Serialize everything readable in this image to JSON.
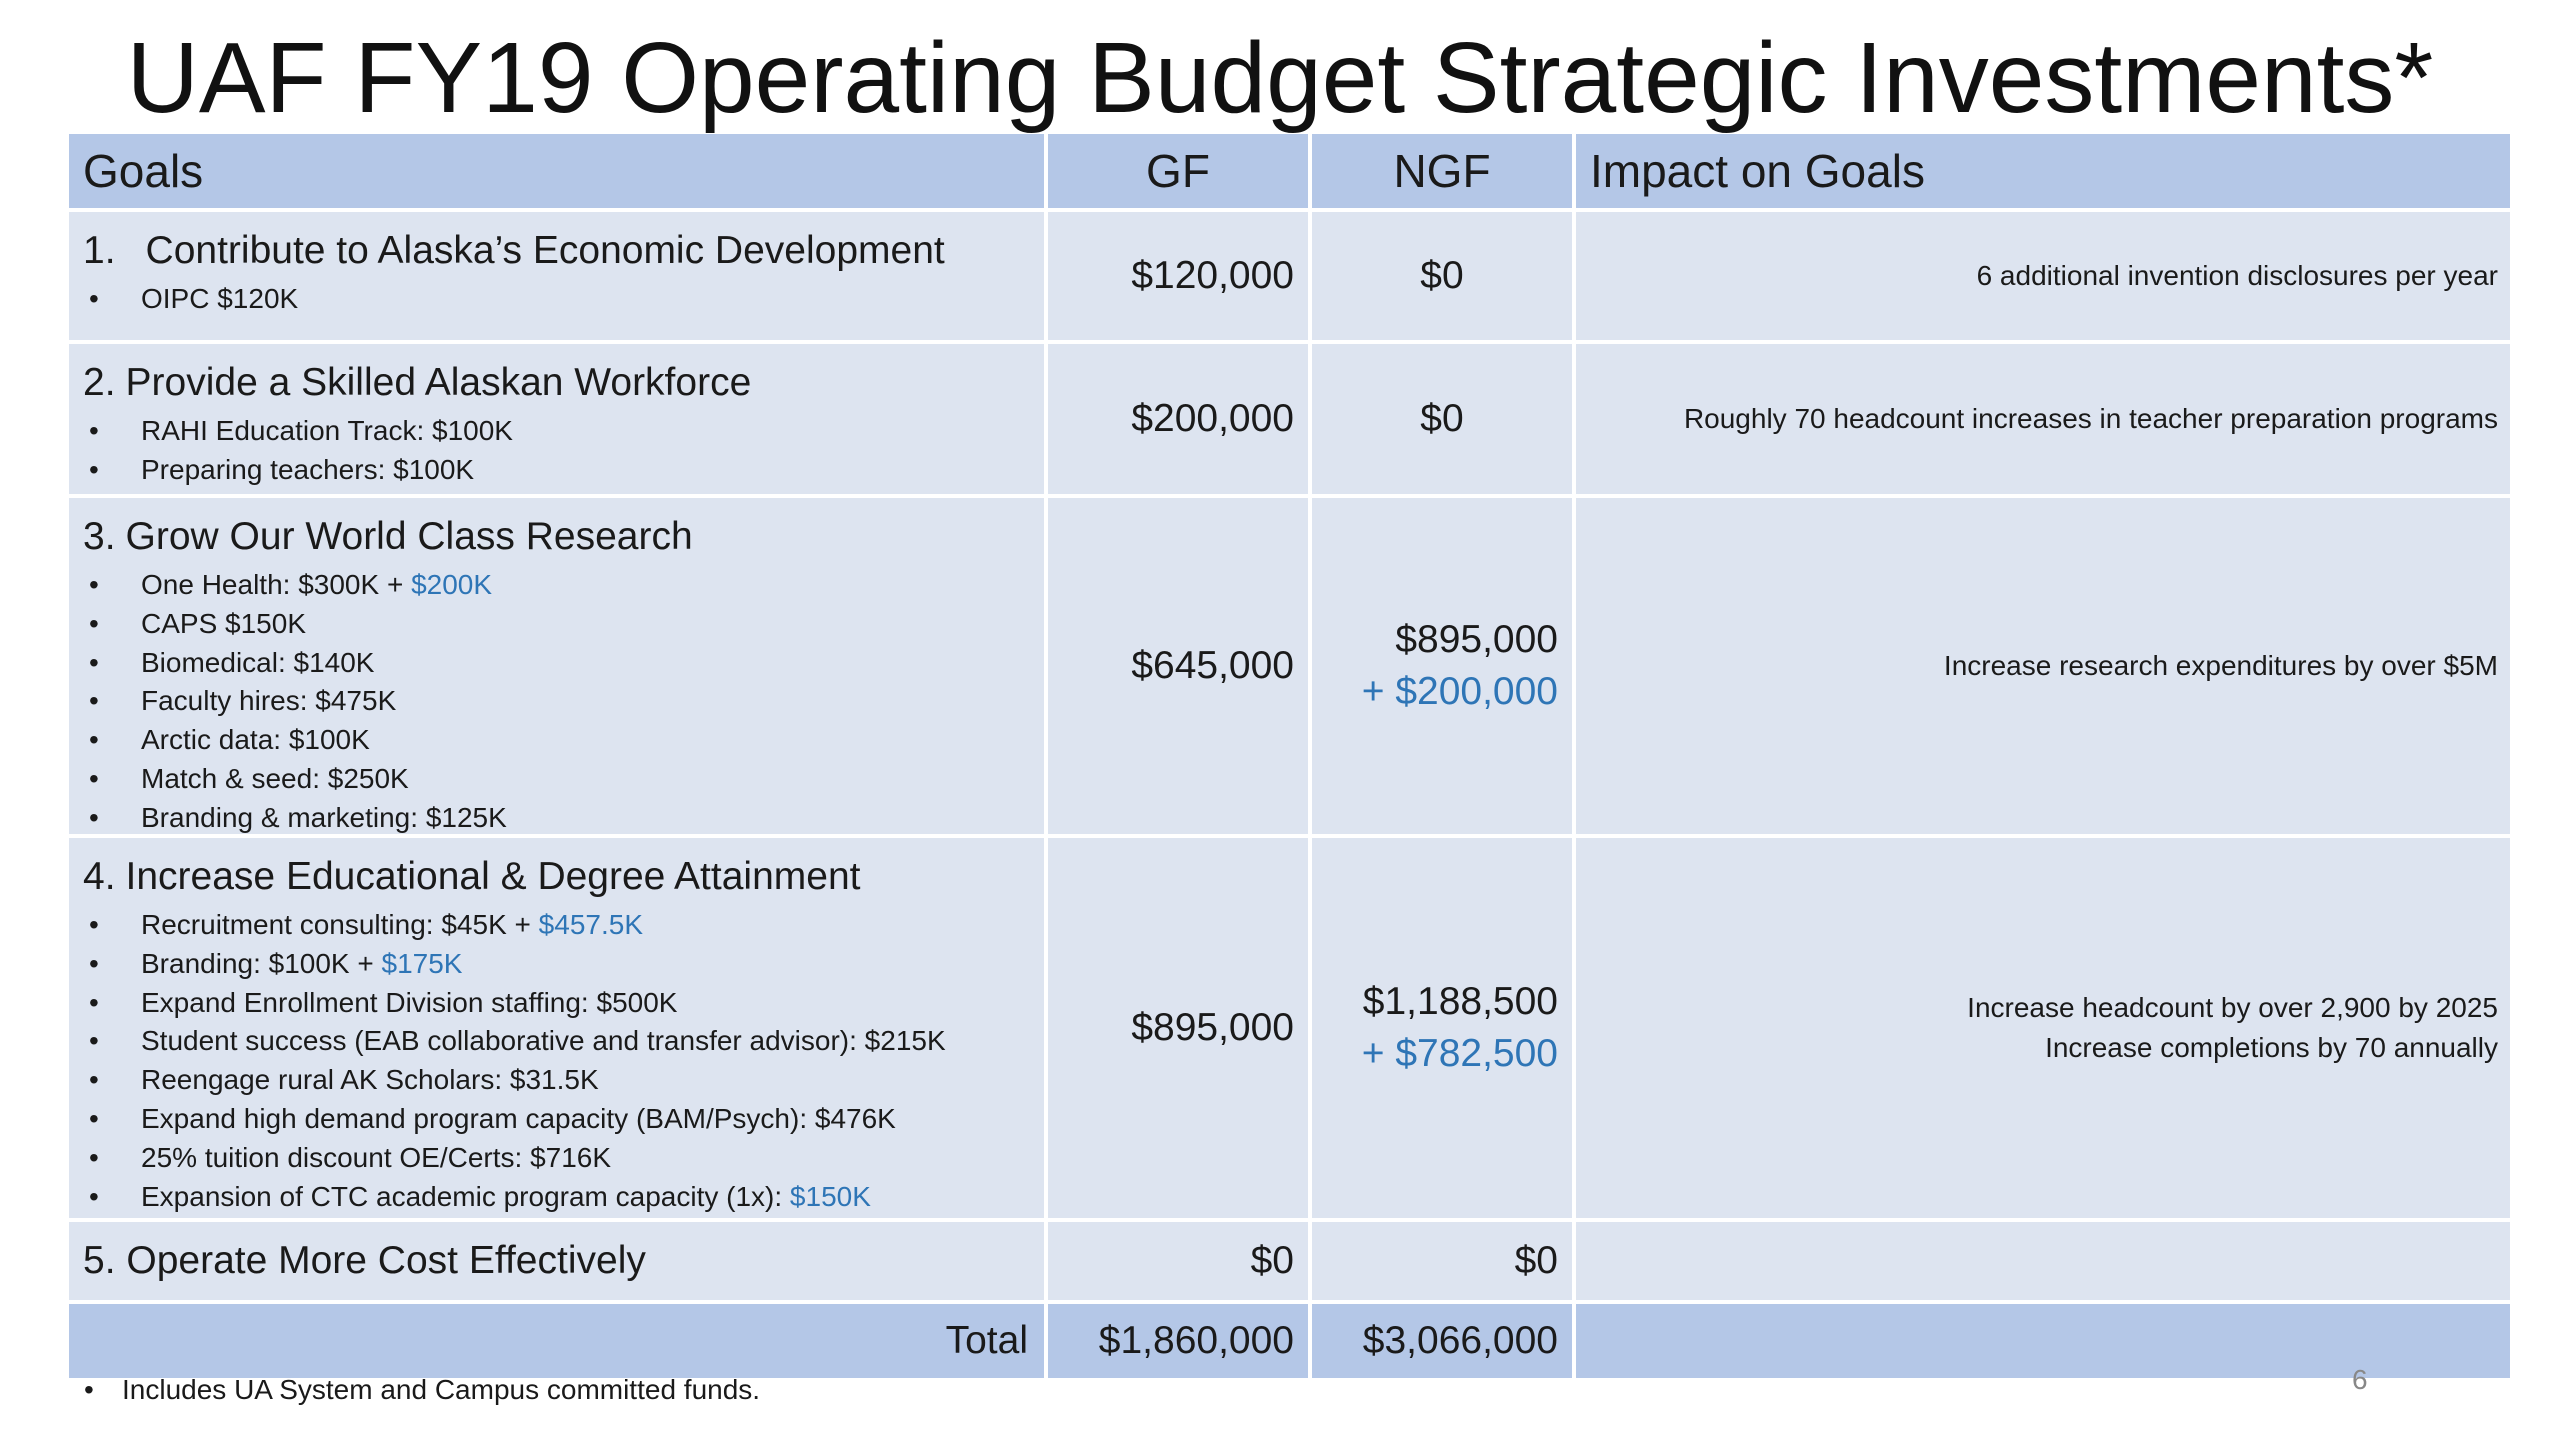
{
  "title": "UAF FY19 Operating Budget Strategic Investments*",
  "headers": {
    "goals": "Goals",
    "gf": "GF",
    "ngf": "NGF",
    "impact": "Impact on Goals"
  },
  "goals": [
    {
      "heading_num": "1.",
      "heading": "Contribute to Alaska’s Economic Development",
      "items": [
        [
          {
            "t": "OIPC $120K"
          }
        ]
      ],
      "gf": "$120,000",
      "ngf": [
        "$0"
      ],
      "impact": [
        "6 additional invention disclosures per year"
      ]
    },
    {
      "heading_num": "2.",
      "heading": "Provide a Skilled Alaskan Workforce",
      "items": [
        [
          {
            "t": "RAHI Education Track: $100K"
          }
        ],
        [
          {
            "t": "Preparing teachers: $100K"
          }
        ]
      ],
      "gf": "$200,000",
      "ngf": [
        "$0"
      ],
      "impact": [
        "Roughly 70 headcount increases in teacher preparation programs"
      ]
    },
    {
      "heading_num": "3.",
      "heading": "Grow Our World Class Research",
      "items": [
        [
          {
            "t": "One Health: $300K + "
          },
          {
            "t": "$200K",
            "blue": true
          }
        ],
        [
          {
            "t": "CAPS $150K"
          }
        ],
        [
          {
            "t": "Biomedical: $140K"
          }
        ],
        [
          {
            "t": "Faculty hires: $475K"
          }
        ],
        [
          {
            "t": "Arctic data: $100K"
          }
        ],
        [
          {
            "t": "Match & seed: $250K"
          }
        ],
        [
          {
            "t": "Branding & marketing: $125K"
          }
        ]
      ],
      "gf": "$645,000",
      "ngf": [
        "$895,000",
        "+ $200,000"
      ],
      "impact": [
        "Increase research expenditures by over $5M"
      ]
    },
    {
      "heading_num": "4.",
      "heading": "Increase Educational & Degree Attainment",
      "items": [
        [
          {
            "t": "Recruitment consulting: $45K + "
          },
          {
            "t": "$457.5K",
            "blue": true
          }
        ],
        [
          {
            "t": "Branding: $100K + "
          },
          {
            "t": "$175K",
            "blue": true
          }
        ],
        [
          {
            "t": "Expand Enrollment Division staffing: $500K"
          }
        ],
        [
          {
            "t": "Student success (EAB collaborative and transfer advisor): $215K"
          }
        ],
        [
          {
            "t": "Reengage rural AK Scholars: $31.5K"
          }
        ],
        [
          {
            "t": "Expand high demand program capacity (BAM/Psych): $476K"
          }
        ],
        [
          {
            "t": "25% tuition discount OE/Certs: $716K"
          }
        ],
        [
          {
            "t": "Expansion of CTC academic program capacity (1x): "
          },
          {
            "t": "$150K",
            "blue": true
          }
        ]
      ],
      "gf": "$895,000",
      "ngf": [
        "$1,188,500",
        "+ $782,500"
      ],
      "impact": [
        "Increase headcount by over 2,900 by 2025",
        "Increase completions by 70 annually"
      ]
    }
  ],
  "goal5": {
    "label": "5. Operate More Cost Effectively",
    "gf": "$0",
    "ngf": "$0"
  },
  "total": {
    "label": "Total",
    "gf": "$1,860,000",
    "ngf": "$3,066,000"
  },
  "footnote": "Includes UA System and Campus committed funds.",
  "page_number": "6",
  "colors": {
    "header_bg": "#b4c7e7",
    "row_bg": "#dde4f0",
    "accent_blue": "#2e75b6"
  }
}
